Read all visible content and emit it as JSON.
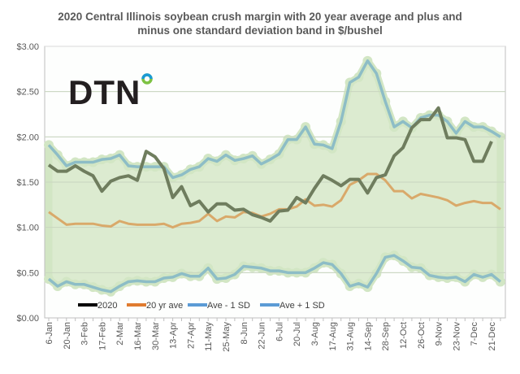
{
  "chart_data": {
    "type": "line",
    "title_line1": "2020 Central Illinois soybean crush margin with 20 year average and plus and",
    "title_line2": "minus one standard deviation band in $/bushel",
    "logo_text": "DTN",
    "xlabel": "",
    "ylabel": "",
    "ylim": [
      0,
      3
    ],
    "yticks": [
      "$0.00",
      "$0.50",
      "$1.00",
      "$1.50",
      "$2.00",
      "$2.50",
      "$3.00"
    ],
    "ytick_values": [
      0,
      0.5,
      1,
      1.5,
      2,
      2.5,
      3
    ],
    "xtick_labels": [
      "6-Jan",
      "20-Jan",
      "3-Feb",
      "17-Feb",
      "2-Mar",
      "16-Mar",
      "30-Mar",
      "13-Apr",
      "27-Apr",
      "11-May",
      "25-May",
      "8-Jun",
      "22-Jun",
      "6-Jul",
      "20-Jul",
      "3-Aug",
      "17-Aug",
      "31-Aug",
      "14-Sep",
      "28-Sep",
      "12-Oct",
      "26-Oct",
      "9-Nov",
      "23-Nov",
      "7-Dec",
      "21-Dec"
    ],
    "x_weeks": 52,
    "grid": true,
    "legend_position": "bottom-left-inside",
    "colors": {
      "s2020": "#6f7d5e",
      "ave": "#d9a96a",
      "sd": "#8dbdc6",
      "band": "#dcebd0",
      "halo": "#d2e6c4",
      "legend2020": "#000000",
      "legendAve": "#e07b30",
      "legendSd": "#5b9bd5",
      "logoDot1": "#1a9ad6",
      "logoDot2": "#7dc242"
    },
    "series": [
      {
        "name": "2020",
        "values": [
          1.69,
          1.62,
          1.62,
          1.68,
          1.62,
          1.57,
          1.4,
          1.51,
          1.55,
          1.57,
          1.52,
          1.84,
          1.78,
          1.65,
          1.33,
          1.45,
          1.24,
          1.29,
          1.17,
          1.26,
          1.26,
          1.19,
          1.2,
          1.14,
          1.11,
          1.07,
          1.18,
          1.19,
          1.33,
          1.27,
          1.43,
          1.57,
          1.52,
          1.46,
          1.53,
          1.53,
          1.38,
          1.55,
          1.58,
          1.79,
          1.88,
          2.1,
          2.19,
          2.19,
          2.32,
          1.99,
          1.99,
          1.97,
          1.73,
          1.73,
          1.95
        ]
      },
      {
        "name": "20 yr ave",
        "values": [
          1.17,
          1.1,
          1.03,
          1.04,
          1.04,
          1.04,
          1.02,
          1.01,
          1.07,
          1.04,
          1.03,
          1.03,
          1.03,
          1.04,
          1.0,
          1.04,
          1.05,
          1.07,
          1.15,
          1.07,
          1.12,
          1.11,
          1.17,
          1.16,
          1.12,
          1.15,
          1.2,
          1.2,
          1.23,
          1.31,
          1.24,
          1.25,
          1.23,
          1.3,
          1.47,
          1.52,
          1.59,
          1.59,
          1.52,
          1.4,
          1.4,
          1.32,
          1.37,
          1.35,
          1.33,
          1.3,
          1.24,
          1.27,
          1.29,
          1.27,
          1.27,
          1.2
        ]
      },
      {
        "name": "Ave - 1 SD",
        "values": [
          0.43,
          0.35,
          0.4,
          0.37,
          0.37,
          0.34,
          0.31,
          0.29,
          0.35,
          0.4,
          0.41,
          0.4,
          0.4,
          0.44,
          0.45,
          0.49,
          0.46,
          0.46,
          0.55,
          0.43,
          0.44,
          0.48,
          0.57,
          0.56,
          0.55,
          0.52,
          0.52,
          0.5,
          0.5,
          0.5,
          0.55,
          0.61,
          0.59,
          0.49,
          0.35,
          0.38,
          0.34,
          0.49,
          0.67,
          0.69,
          0.63,
          0.56,
          0.55,
          0.47,
          0.45,
          0.44,
          0.45,
          0.4,
          0.48,
          0.45,
          0.48,
          0.4
        ]
      },
      {
        "name": "Ave + 1 SD",
        "values": [
          1.91,
          1.8,
          1.68,
          1.72,
          1.72,
          1.72,
          1.75,
          1.76,
          1.8,
          1.68,
          1.67,
          1.67,
          1.67,
          1.67,
          1.55,
          1.58,
          1.64,
          1.67,
          1.76,
          1.73,
          1.8,
          1.74,
          1.76,
          1.79,
          1.7,
          1.75,
          1.81,
          1.97,
          1.97,
          2.11,
          1.92,
          1.91,
          1.87,
          2.17,
          2.6,
          2.66,
          2.84,
          2.7,
          2.39,
          2.11,
          2.17,
          2.1,
          2.21,
          2.24,
          2.24,
          2.17,
          2.04,
          2.17,
          2.11,
          2.11,
          2.06,
          2.0
        ]
      }
    ]
  }
}
